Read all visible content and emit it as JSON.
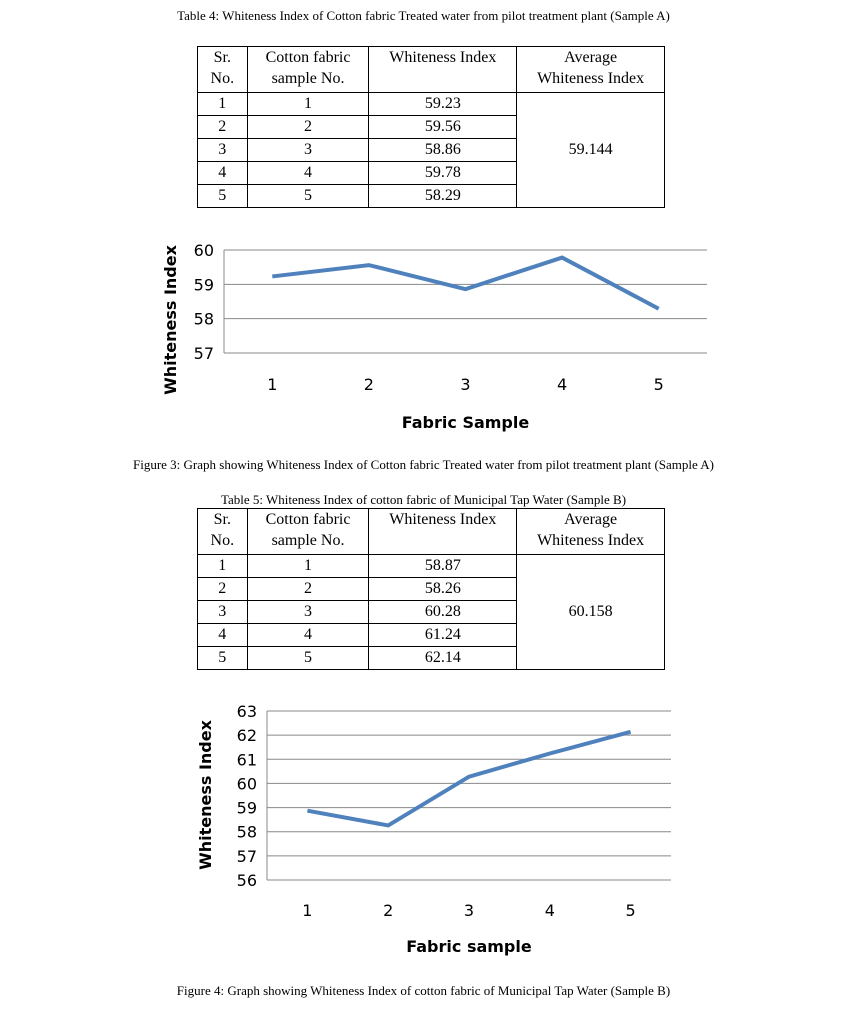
{
  "table4": {
    "caption": "Table 4: Whiteness Index of Cotton fabric Treated water from pilot treatment plant (Sample A)",
    "headers": [
      "Sr. No.",
      "Cotton fabric sample No.",
      "Whiteness Index",
      "Average Whiteness Index"
    ],
    "header_lines": [
      [
        "Sr.",
        "No."
      ],
      [
        "Cotton fabric",
        "sample No."
      ],
      [
        "Whiteness Index"
      ],
      [
        "Average",
        "Whiteness Index"
      ]
    ],
    "rows": [
      {
        "sr": "1",
        "sample": "1",
        "wi": "59.23"
      },
      {
        "sr": "2",
        "sample": "2",
        "wi": "59.56"
      },
      {
        "sr": "3",
        "sample": "3",
        "wi": "58.86"
      },
      {
        "sr": "4",
        "sample": "4",
        "wi": "59.78"
      },
      {
        "sr": "5",
        "sample": "5",
        "wi": "58.29"
      }
    ],
    "average": "59.144"
  },
  "figure3": {
    "caption": "Figure 3: Graph showing Whiteness Index of Cotton fabric Treated water from pilot treatment plant (Sample A)"
  },
  "table5": {
    "caption": "Table 5: Whiteness Index of cotton fabric of Municipal Tap Water (Sample B)",
    "headers": [
      "Sr. No.",
      "Cotton fabric sample No.",
      "Whiteness Index",
      "Average Whiteness Index"
    ],
    "header_lines": [
      [
        "Sr.",
        "No."
      ],
      [
        "Cotton fabric",
        "sample No."
      ],
      [
        "Whiteness Index"
      ],
      [
        "Average",
        "Whiteness Index"
      ]
    ],
    "rows": [
      {
        "sr": "1",
        "sample": "1",
        "wi": "58.87"
      },
      {
        "sr": "2",
        "sample": "2",
        "wi": "58.26"
      },
      {
        "sr": "3",
        "sample": "3",
        "wi": "60.28"
      },
      {
        "sr": "4",
        "sample": "4",
        "wi": "61.24"
      },
      {
        "sr": "5",
        "sample": "5",
        "wi": "62.14"
      }
    ],
    "average": "60.158"
  },
  "figure4": {
    "caption": "Figure 4: Graph showing Whiteness Index of cotton fabric of Municipal Tap Water (Sample B)"
  },
  "chart_data": [
    {
      "type": "line",
      "categories": [
        "1",
        "2",
        "3",
        "4",
        "5"
      ],
      "values": [
        59.23,
        59.56,
        58.86,
        59.78,
        58.29
      ],
      "xlabel": "Fabric Sample",
      "ylabel": "Whiteness Index",
      "ylim": [
        57,
        60
      ],
      "yticks": [
        57,
        58,
        59,
        60
      ],
      "grid": true,
      "line_color": "#4f81bd"
    },
    {
      "type": "line",
      "categories": [
        "1",
        "2",
        "3",
        "4",
        "5"
      ],
      "values": [
        58.87,
        58.26,
        60.28,
        61.24,
        62.14
      ],
      "xlabel": "Fabric sample",
      "ylabel": "Whiteness Index",
      "ylim": [
        56,
        63
      ],
      "yticks": [
        56,
        57,
        58,
        59,
        60,
        61,
        62,
        63
      ],
      "grid": true,
      "line_color": "#4f81bd"
    }
  ]
}
